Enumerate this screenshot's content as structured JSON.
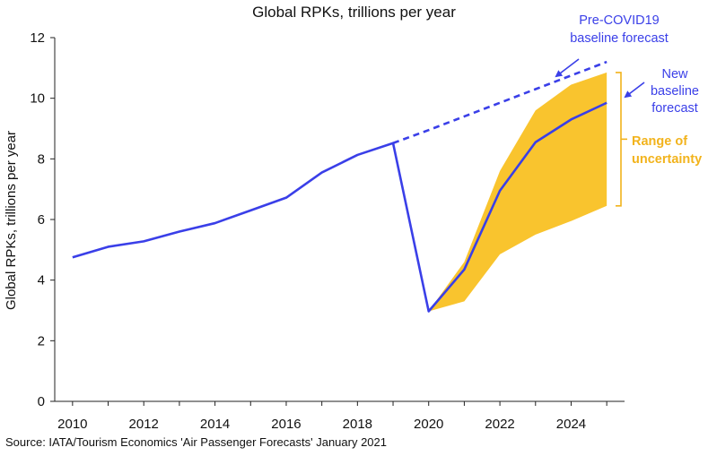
{
  "chart_data": {
    "type": "line",
    "title": "Global RPKs, trillions per year",
    "xlabel": "",
    "ylabel": "Global RPKs, trillions per year",
    "xlim": [
      2009.5,
      2025.5
    ],
    "ylim": [
      0,
      12
    ],
    "x_ticks": [
      "2010",
      "2012",
      "2014",
      "2016",
      "2018",
      "2020",
      "2022",
      "2024"
    ],
    "y_ticks": [
      "0",
      "2",
      "4",
      "6",
      "8",
      "10",
      "12"
    ],
    "grid": false,
    "colors": {
      "series": "#3a3fe8",
      "band": "#f9c42e",
      "band_label": "#f2b31c"
    },
    "series": [
      {
        "name": "Actual / New baseline forecast",
        "x": [
          2010,
          2011,
          2012,
          2013,
          2014,
          2015,
          2016,
          2017,
          2018,
          2019,
          2020,
          2021,
          2022,
          2023,
          2024,
          2025
        ],
        "y": [
          4.75,
          5.1,
          5.28,
          5.6,
          5.88,
          6.3,
          6.72,
          7.55,
          8.13,
          8.52,
          2.97,
          4.35,
          6.95,
          8.55,
          9.3,
          9.85
        ],
        "style": "solid"
      },
      {
        "name": "Pre-COVID19 baseline forecast",
        "x": [
          2019,
          2020,
          2021,
          2022,
          2023,
          2024,
          2025
        ],
        "y": [
          8.52,
          8.95,
          9.4,
          9.85,
          10.3,
          10.75,
          11.2
        ],
        "style": "dashed"
      }
    ],
    "uncertainty_band": {
      "name": "Range of uncertainty",
      "x": [
        2020,
        2021,
        2022,
        2023,
        2024,
        2025
      ],
      "upper": [
        2.97,
        4.6,
        7.6,
        9.6,
        10.45,
        10.85
      ],
      "lower": [
        2.97,
        3.3,
        4.85,
        5.5,
        5.95,
        6.45
      ]
    },
    "annotations": {
      "precovid": [
        "Pre-COVID19",
        "baseline forecast"
      ],
      "new_baseline": [
        "New",
        "baseline",
        "forecast"
      ],
      "range": [
        "Range of",
        "uncertainty"
      ]
    },
    "source": "Source: IATA/Tourism Economics 'Air Passenger Forecasts' January 2021"
  }
}
